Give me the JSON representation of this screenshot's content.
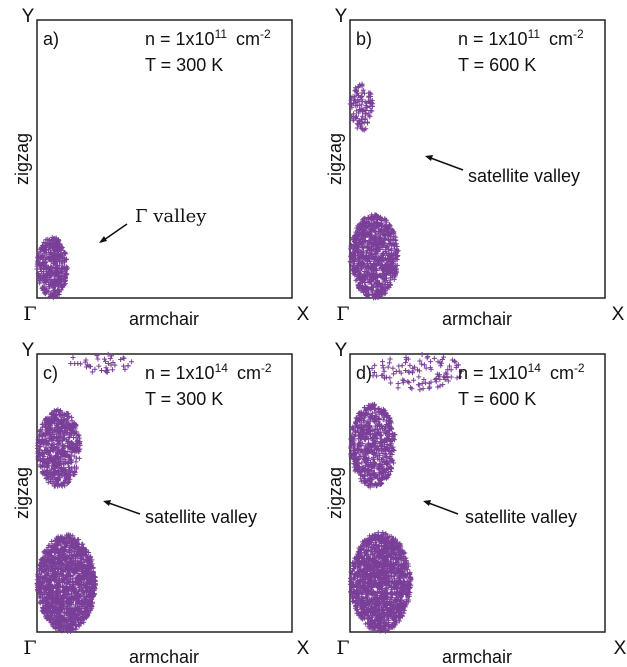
{
  "accent_color": "#7a3f98",
  "chart_data": [
    {
      "type": "scatter",
      "panel_label": "a)",
      "density_text": "n = 1x10",
      "density_exponent": "11",
      "density_unit": "cm",
      "density_unit_exponent": "-2",
      "temperature": "T = 300 K",
      "xlabel": "armchair",
      "ylabel": "zigzag",
      "x_start_label": "Γ",
      "x_end_label": "X",
      "y_end_label": "Y",
      "annotation": "Γ valley",
      "xlim": [
        0,
        1
      ],
      "ylim": [
        0,
        1
      ],
      "grid": false,
      "clusters": [
        {
          "name": "Γ valley",
          "x_range": [
            0.0,
            0.12
          ],
          "y_range": [
            0.0,
            0.22
          ],
          "points": 420
        }
      ]
    },
    {
      "type": "scatter",
      "panel_label": "b)",
      "density_text": "n = 1x10",
      "density_exponent": "11",
      "density_unit": "cm",
      "density_unit_exponent": "-2",
      "temperature": "T = 600 K",
      "xlabel": "armchair",
      "ylabel": "zigzag",
      "x_start_label": "Γ",
      "x_end_label": "X",
      "y_end_label": "Y",
      "annotation": "satellite valley",
      "xlim": [
        0,
        1
      ],
      "ylim": [
        0,
        1
      ],
      "grid": false,
      "clusters": [
        {
          "name": "Γ valley",
          "x_range": [
            0.0,
            0.19
          ],
          "y_range": [
            0.0,
            0.3
          ],
          "points": 900
        },
        {
          "name": "satellite valley",
          "x_range": [
            0.0,
            0.09
          ],
          "y_range": [
            0.6,
            0.77
          ],
          "points": 110
        }
      ]
    },
    {
      "type": "scatter",
      "panel_label": "c)",
      "density_text": "n = 1x10",
      "density_exponent": "14",
      "density_unit": "cm",
      "density_unit_exponent": "-2",
      "temperature": "T = 300 K",
      "xlabel": "armchair",
      "ylabel": "zigzag",
      "x_start_label": "Γ",
      "x_end_label": "X",
      "y_end_label": "Y",
      "annotation": "satellite valley",
      "xlim": [
        0,
        1
      ],
      "ylim": [
        0,
        1
      ],
      "grid": false,
      "clusters": [
        {
          "name": "Γ valley",
          "x_range": [
            0.0,
            0.23
          ],
          "y_range": [
            0.0,
            0.35
          ],
          "points": 1500
        },
        {
          "name": "satellite valley",
          "x_range": [
            0.0,
            0.17
          ],
          "y_range": [
            0.52,
            0.8
          ],
          "points": 650
        },
        {
          "name": "edge points",
          "x_range": [
            0.1,
            0.38
          ],
          "y_range": [
            0.93,
            1.0
          ],
          "points": 40
        }
      ]
    },
    {
      "type": "scatter",
      "panel_label": "d)",
      "density_text": "n = 1x10",
      "density_exponent": "14",
      "density_unit": "cm",
      "density_unit_exponent": "-2",
      "temperature": "T = 600 K",
      "xlabel": "armchair",
      "ylabel": "zigzag",
      "x_start_label": "Γ",
      "x_end_label": "X",
      "y_end_label": "Y",
      "annotation": "satellite valley",
      "xlim": [
        0,
        1
      ],
      "ylim": [
        0,
        1
      ],
      "grid": false,
      "clusters": [
        {
          "name": "Γ valley",
          "x_range": [
            0.0,
            0.24
          ],
          "y_range": [
            0.0,
            0.36
          ],
          "points": 1500
        },
        {
          "name": "satellite valley",
          "x_range": [
            0.0,
            0.18
          ],
          "y_range": [
            0.52,
            0.82
          ],
          "points": 700
        },
        {
          "name": "edge points",
          "x_range": [
            0.08,
            0.45
          ],
          "y_range": [
            0.87,
            1.0
          ],
          "points": 110
        }
      ]
    }
  ]
}
